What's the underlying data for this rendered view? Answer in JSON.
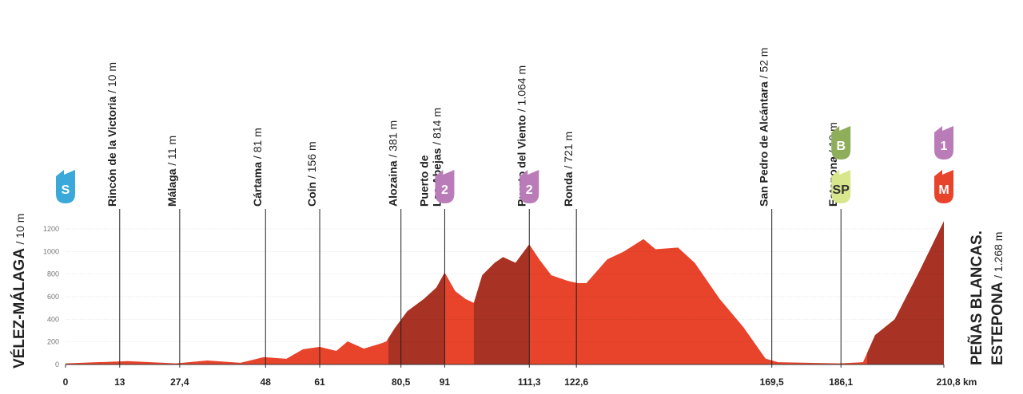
{
  "chart_data": {
    "type": "area",
    "start": {
      "name": "VÉLEZ-MÁLAGA",
      "alt": "/ 10 m"
    },
    "finish": {
      "lines": [
        "PEÑAS BLANCAS.",
        "ESTEPONA"
      ],
      "alt": "/ 1.268 m"
    },
    "profile": {
      "x": [
        0,
        15,
        26.5,
        34,
        42,
        47.6,
        53,
        57,
        61,
        65,
        67.7,
        71.6,
        76,
        77,
        79,
        82,
        86,
        89,
        91,
        93.5,
        96,
        98,
        100,
        103,
        105,
        108,
        111.3,
        113.7,
        116.6,
        120.5,
        122.8,
        125,
        130,
        134,
        138.7,
        141.6,
        147,
        151,
        157,
        162.7,
        168,
        171,
        185.7,
        191.4,
        194.3,
        199,
        205,
        210.8
      ],
      "y": [
        10,
        30,
        10,
        35,
        15,
        65,
        50,
        135,
        156,
        120,
        205,
        140,
        190,
        205,
        320,
        470,
        580,
        680,
        814,
        650,
        580,
        545,
        790,
        900,
        950,
        900,
        1064,
        930,
        790,
        740,
        721,
        720,
        930,
        1000,
        1110,
        1020,
        1035,
        900,
        580,
        330,
        52,
        20,
        10,
        20,
        260,
        400,
        830,
        1268
      ]
    },
    "fill_color": "#e8432b",
    "climb_color": "#a83224",
    "climbs": [
      {
        "start": 77.5,
        "end": 91
      },
      {
        "start": 98,
        "end": 111.3
      },
      {
        "start": 192.4,
        "end": 210.8
      }
    ],
    "xlim": [
      0,
      210.8
    ],
    "ylim": [
      0,
      1200
    ],
    "yticks": [
      0,
      200,
      400,
      600,
      800,
      1000,
      1200
    ],
    "grid": true,
    "xticks": [
      0,
      13,
      {
        "value": 27.4,
        "label": "27,4"
      },
      48,
      61,
      {
        "value": 80.5,
        "label": "80,5"
      },
      91,
      {
        "value": 111.3,
        "label": "111,3"
      },
      {
        "value": 122.6,
        "label": "122,6"
      },
      {
        "value": 169.5,
        "label": "169,5"
      },
      {
        "value": 186.1,
        "label": "186,1"
      },
      {
        "value": 210.8,
        "label": "210,8 km"
      }
    ],
    "waypoints": [
      {
        "km": 13,
        "lines": [
          "Rincón de la Victoria"
        ],
        "alt": "/ 10 m"
      },
      {
        "km": 27.4,
        "lines": [
          "Málaga"
        ],
        "alt": "/ 11 m"
      },
      {
        "km": 48,
        "lines": [
          "Cártama"
        ],
        "alt": "/ 81 m"
      },
      {
        "km": 61,
        "lines": [
          "Coín"
        ],
        "alt": "/ 156 m"
      },
      {
        "km": 80.5,
        "lines": [
          "Alozaina"
        ],
        "alt": "/ 381 m"
      },
      {
        "km": 91,
        "lines": [
          "Puerto de",
          "Las Abejas"
        ],
        "alt": "/ 814 m"
      },
      {
        "km": 111.3,
        "lines": [
          "Puerto del Viento"
        ],
        "alt": "/ 1.064 m"
      },
      {
        "km": 122.6,
        "lines": [
          "Ronda"
        ],
        "alt": "/ 721 m"
      },
      {
        "km": 169.5,
        "lines": [
          "San Pedro de Alcántara"
        ],
        "alt": "/ 52 m"
      },
      {
        "km": 186.1,
        "lines": [
          "Estepona"
        ],
        "alt": "/ 10 m"
      }
    ],
    "badges": [
      {
        "km": 0,
        "label": "S",
        "color": "#3aa9d9",
        "text_color": "#ffffff"
      },
      {
        "km": 91,
        "label": "2",
        "color": "#b97cb8",
        "text_color": "#ffffff"
      },
      {
        "km": 111.3,
        "label": "2",
        "color": "#b97cb8",
        "text_color": "#ffffff"
      },
      {
        "km": 186.1,
        "label": "B",
        "color": "#8fae5a",
        "text_color": "#ffffff"
      },
      {
        "km": 186.1,
        "label": "SP",
        "color": "#d8e68c",
        "text_color": "#333333"
      },
      {
        "km": 210.8,
        "label": "1",
        "color": "#b97cb8",
        "text_color": "#ffffff"
      },
      {
        "km": 210.8,
        "label": "M",
        "color": "#e8432b",
        "text_color": "#ffffff"
      }
    ]
  }
}
